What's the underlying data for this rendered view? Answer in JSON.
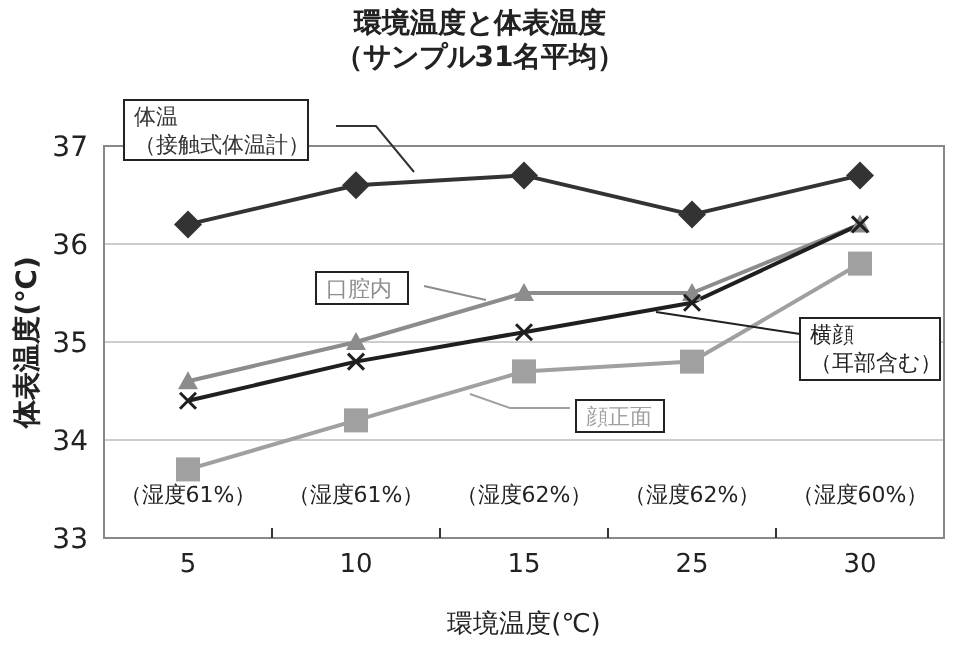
{
  "chart_data": {
    "type": "line",
    "title": "環境温度と体表温度",
    "subtitle": "（サンプル31名平均）",
    "xlabel": "環境温度(℃)",
    "ylabel": "体表温度(℃)",
    "categories": [
      "5",
      "10",
      "15",
      "25",
      "30"
    ],
    "series": [
      {
        "name": "体温（接触式体温計）",
        "color": "#333333",
        "marker": "diamond",
        "values": [
          36.2,
          36.6,
          36.7,
          36.3,
          36.7
        ]
      },
      {
        "name": "口腔内",
        "color": "#8c8c8c",
        "marker": "triangle",
        "values": [
          34.6,
          35.0,
          35.5,
          35.5,
          36.2
        ]
      },
      {
        "name": "横顔（耳部含む）",
        "color": "#1f1f1f",
        "marker": "cross",
        "values": [
          34.4,
          34.8,
          35.1,
          35.4,
          36.2
        ]
      },
      {
        "name": "顔正面",
        "color": "#a0a0a0",
        "marker": "square",
        "values": [
          33.7,
          34.2,
          34.7,
          34.8,
          35.8
        ]
      }
    ],
    "annotations": [
      "（湿度61%）",
      "（湿度61%）",
      "（湿度62%）",
      "（湿度62%）",
      "（湿度60%）"
    ],
    "ylim": [
      33,
      37
    ],
    "yticks": [
      33,
      34,
      35,
      36,
      37
    ],
    "grid": "y"
  }
}
